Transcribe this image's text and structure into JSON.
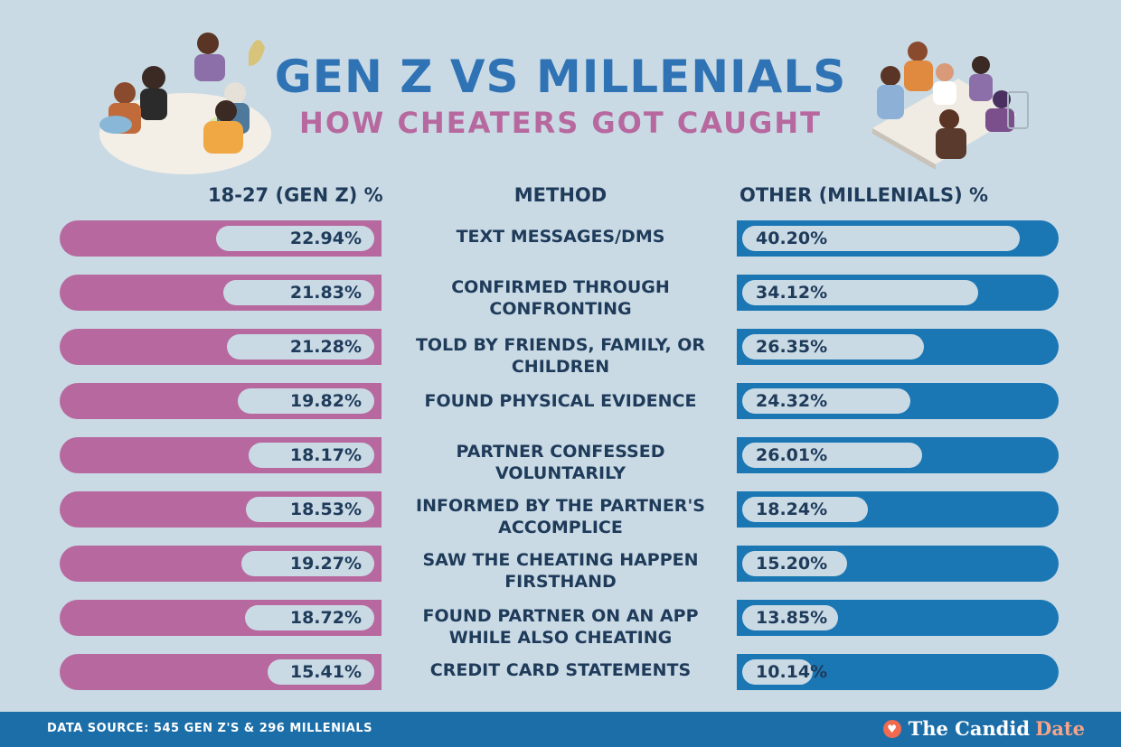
{
  "title": "GEN Z VS MILLENIALS",
  "subtitle": "HOW CHEATERS GOT CAUGHT",
  "footer": {
    "source": "DATA SOURCE: 545 GEN Z'S & 296 MILLENIALS",
    "brand_main": "The Candid",
    "brand_accent": "Date",
    "brand_icon": "heart-icon"
  },
  "colors": {
    "gen_z": "#b7699f",
    "millennials": "#1a77b3",
    "title": "#2f73b5",
    "background": "#c9dae5"
  },
  "chart_data": {
    "type": "bar",
    "title": "GEN Z VS MILLENIALS",
    "subtitle": "HOW CHEATERS GOT CAUGHT",
    "xmax": 45,
    "column_headers": {
      "left": "18-27 (GEN Z) %",
      "middle": "METHOD",
      "right": "OTHER (MILLENIALS) %"
    },
    "categories": [
      "TEXT MESSAGES/DMS",
      "CONFIRMED THROUGH CONFRONTING",
      "TOLD BY FRIENDS, FAMILY, OR CHILDREN",
      "FOUND PHYSICAL EVIDENCE",
      "PARTNER CONFESSED VOLUNTARILY",
      "INFORMED BY THE PARTNER'S ACCOMPLICE",
      "SAW THE CHEATING HAPPEN FIRSTHAND",
      "FOUND PARTNER ON AN APP WHILE ALSO CHEATING",
      "CREDIT CARD STATEMENTS"
    ],
    "series": [
      {
        "name": "18-27 (GEN Z) %",
        "values": [
          22.94,
          21.83,
          21.28,
          19.82,
          18.17,
          18.53,
          19.27,
          18.72,
          15.41
        ],
        "labels": [
          "22.94%",
          "21.83%",
          "21.28%",
          "19.82%",
          "18.17%",
          "18.53%",
          "19.27%",
          "18.72%",
          "15.41%"
        ]
      },
      {
        "name": "OTHER (MILLENIALS) %",
        "values": [
          40.2,
          34.12,
          26.35,
          24.32,
          26.01,
          18.24,
          15.2,
          13.85,
          10.14
        ],
        "labels": [
          "40.20%",
          "34.12%",
          "26.35%",
          "24.32%",
          "26.01%",
          "18.24%",
          "15.20%",
          "13.85%",
          "10.14%"
        ]
      }
    ]
  }
}
